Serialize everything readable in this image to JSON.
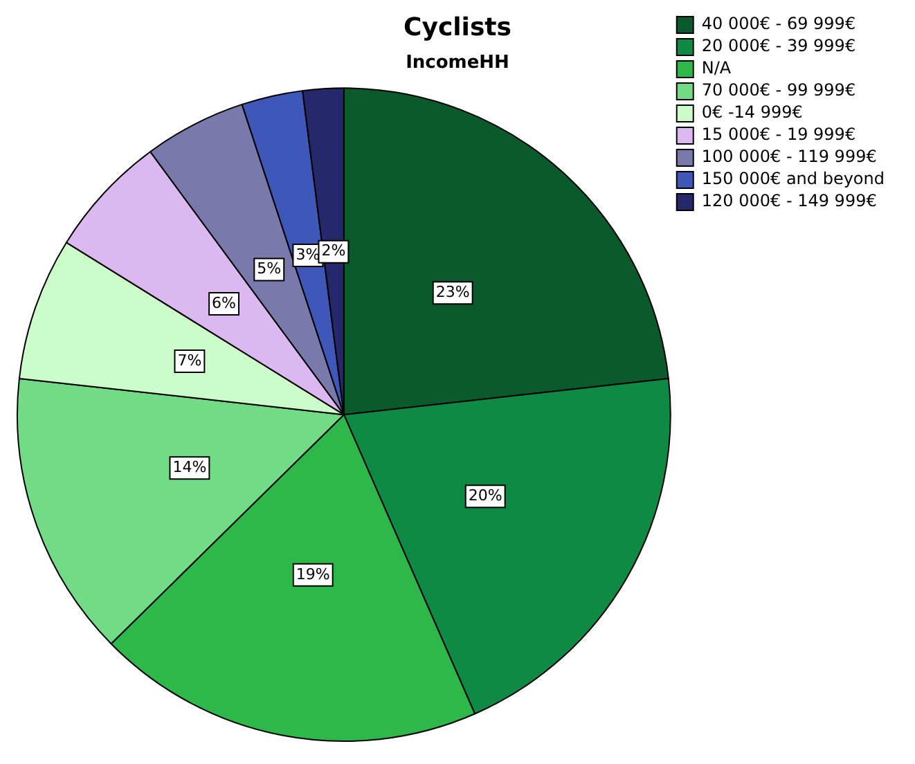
{
  "chart_data": {
    "type": "pie",
    "title": "Cyclists",
    "subtitle": "IncomeHH",
    "categories": [
      "40 000€ - 69 999€",
      "20 000€ - 39 999€",
      "N/A",
      "70 000€ - 99 999€",
      "0€ -14 999€",
      "15 000€ - 19 999€",
      "100 000€ - 119 999€",
      "150 000€ and beyond",
      "120 000€ - 149 999€"
    ],
    "values": [
      23,
      20,
      19,
      14,
      7,
      6,
      5,
      3,
      2
    ],
    "value_labels": [
      "23%",
      "20%",
      "19%",
      "14%",
      "7%",
      "6%",
      "5%",
      "3%",
      "2%"
    ],
    "colors": [
      "#0b5a2c",
      "#0f8a45",
      "#2fb84a",
      "#72db86",
      "#ccfcca",
      "#dcb8f0",
      "#7a79ac",
      "#3f57b8",
      "#25286a"
    ],
    "legend": "right"
  }
}
